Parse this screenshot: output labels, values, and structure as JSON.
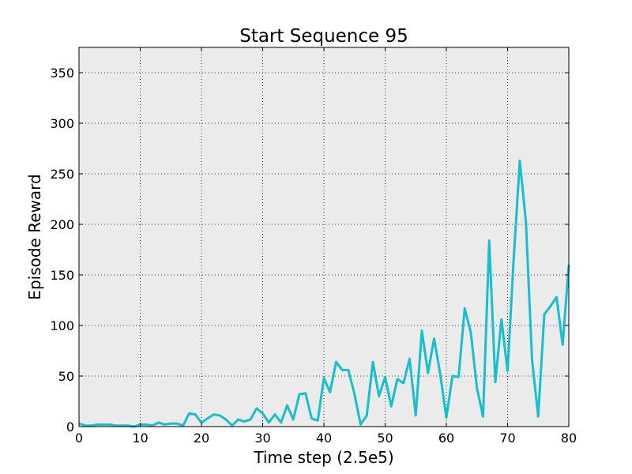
{
  "chart_data": {
    "type": "line",
    "title": "Start Sequence 95",
    "xlabel": "Time step (2.5e5)",
    "ylabel": "Episode Reward",
    "xlim": [
      0,
      80
    ],
    "ylim": [
      0,
      375
    ],
    "xticks": [
      0,
      10,
      20,
      30,
      40,
      50,
      60,
      70,
      80
    ],
    "yticks": [
      0,
      50,
      100,
      150,
      200,
      250,
      300,
      350
    ],
    "grid": true,
    "background": "#ebebeb",
    "series": [
      {
        "color": "#17becf",
        "x": [
          0,
          1,
          2,
          3,
          4,
          5,
          6,
          7,
          8,
          9,
          10,
          11,
          12,
          13,
          14,
          15,
          16,
          17,
          18,
          19,
          20,
          21,
          22,
          23,
          24,
          25,
          26,
          27,
          28,
          29,
          30,
          31,
          32,
          33,
          34,
          35,
          36,
          37,
          38,
          39,
          40,
          41,
          42,
          43,
          44,
          45,
          46,
          47,
          48,
          49,
          50,
          51,
          52,
          53,
          54,
          55,
          56,
          57,
          58,
          59,
          60,
          61,
          62,
          63,
          64,
          65,
          66,
          67,
          68,
          69,
          70,
          71,
          72,
          73,
          74,
          75,
          76,
          77,
          78,
          79,
          80
        ],
        "y": [
          3,
          1,
          1,
          2,
          2,
          2,
          1,
          1,
          1,
          0,
          2,
          2,
          1,
          4,
          2,
          3,
          3,
          1,
          13,
          12,
          4,
          8,
          12,
          11,
          7,
          1,
          7,
          5,
          7,
          18,
          13,
          4,
          12,
          4,
          21,
          7,
          32,
          33,
          8,
          6,
          48,
          34,
          64,
          56,
          56,
          32,
          2,
          11,
          64,
          30,
          49,
          20,
          47,
          43,
          67,
          11,
          95,
          53,
          87,
          52,
          9,
          50,
          49,
          117,
          93,
          38,
          10,
          184,
          44,
          106,
          55,
          166,
          263,
          202,
          66,
          10,
          111,
          119,
          128,
          81,
          160
        ]
      }
    ]
  }
}
